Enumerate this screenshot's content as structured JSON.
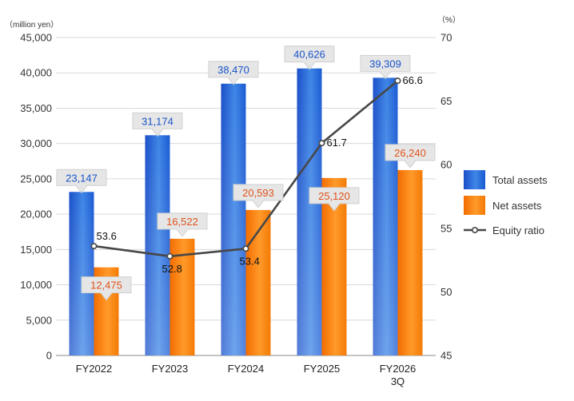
{
  "chart_data": {
    "type": "bar",
    "categories": [
      [
        "FY2022"
      ],
      [
        "FY2023"
      ],
      [
        "FY2024"
      ],
      [
        "FY2025"
      ],
      [
        "FY2026",
        "3Q"
      ]
    ],
    "series": [
      {
        "name": "Total assets",
        "type": "bar",
        "axis": "left",
        "values": [
          23147,
          31174,
          38470,
          40626,
          39309
        ],
        "labels": [
          "23,147",
          "31,174",
          "38,470",
          "40,626",
          "39,309"
        ],
        "color": "#1f5fd6"
      },
      {
        "name": "Net assets",
        "type": "bar",
        "axis": "left",
        "values": [
          12475,
          16522,
          20593,
          25120,
          26240
        ],
        "labels": [
          "12,475",
          "16,522",
          "20,593",
          "25,120",
          "26,240"
        ],
        "color": "#f07c0a"
      },
      {
        "name": "Equity ratio",
        "type": "line",
        "axis": "right",
        "values": [
          53.6,
          52.8,
          53.4,
          61.7,
          66.6
        ],
        "labels": [
          "53.6",
          "52.8",
          "53.4",
          "61.7",
          "66.6"
        ],
        "color": "#444444"
      }
    ],
    "y_left": {
      "unit": "（million yen）",
      "ylim": [
        0,
        45000
      ],
      "ticks": [
        "0",
        "5,000",
        "10,000",
        "15,000",
        "20,000",
        "25,000",
        "30,000",
        "35,000",
        "40,000",
        "45,000"
      ]
    },
    "y_right": {
      "unit": "（%）",
      "ylim": [
        45,
        70
      ],
      "ticks": [
        "45",
        "50",
        "55",
        "60",
        "65",
        "70"
      ]
    },
    "grid": true,
    "legend_position": "right"
  }
}
